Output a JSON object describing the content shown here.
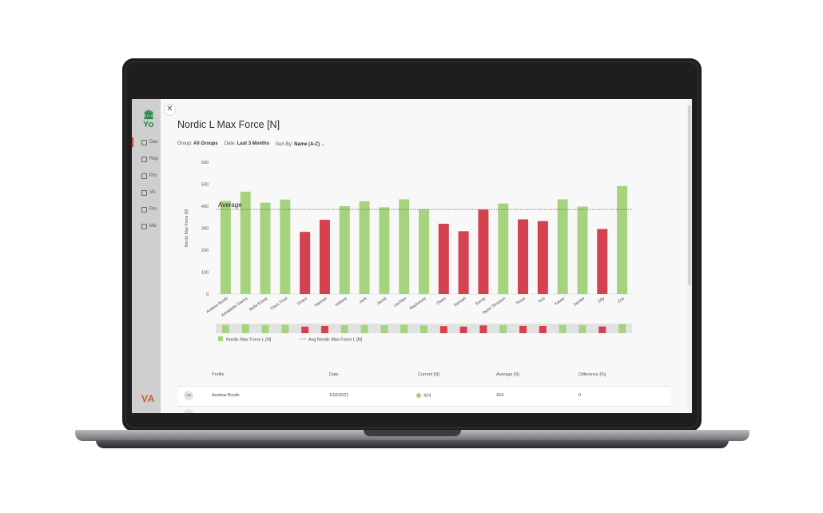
{
  "colors": {
    "good": "#a6d47e",
    "bad": "#d4414f",
    "avg_line": "#555555",
    "accent": "#d2542b"
  },
  "sidebar": {
    "logo": "Yo",
    "brand": "VA",
    "items": [
      {
        "label": "Das",
        "icon": "home-icon"
      },
      {
        "label": "Rep",
        "icon": "reports-icon"
      },
      {
        "label": "Pro",
        "icon": "programs-icon"
      },
      {
        "label": "VA",
        "icon": "vald-icon"
      },
      {
        "label": "Pro",
        "icon": "profiles-icon"
      },
      {
        "label": "Ma",
        "icon": "manage-icon"
      }
    ]
  },
  "modal": {
    "close_icon": "close-icon",
    "title": "Nordic L Max Force [N]",
    "filters": {
      "group_label": "Group:",
      "group_value": "All Groups",
      "date_label": "Date:",
      "date_value": "Last 3 Months",
      "sort_label": "Sort By:",
      "sort_value": "Name (A-Z)"
    }
  },
  "chart_data": {
    "type": "bar",
    "ylabel": "Nordic Max Force [N]",
    "ylim": [
      0,
      600
    ],
    "yticks": [
      0,
      100,
      200,
      300,
      400,
      500,
      600
    ],
    "average": 385,
    "average_label": "Average",
    "categories": [
      "Andrew Booth",
      "Annabelle Davies",
      "Bella Essey",
      "Clara Trust",
      "Grace",
      "Hannah",
      "Indiana",
      "Jack",
      "Jacob",
      "Lachlan",
      "Mackenzie",
      "Owen",
      "Samuel",
      "Sonny",
      "Taylor Simpson",
      "Tessa",
      "Tom",
      "Xavier",
      "Zander",
      "Zilly",
      "Zoe"
    ],
    "values": [
      424,
      466,
      416,
      430,
      283,
      338,
      400,
      422,
      395,
      431,
      386,
      320,
      286,
      384,
      412,
      340,
      332,
      431,
      398,
      296,
      492
    ],
    "legend": [
      {
        "label": "Nordic Max Force L [N]",
        "kind": "bar"
      },
      {
        "label": "Avg Nordic Max Force L [N]",
        "kind": "line"
      }
    ]
  },
  "table": {
    "headers": [
      "Profile",
      "Date",
      "Current [N]",
      "Average [N]",
      "Difference [%]"
    ],
    "rows": [
      {
        "initials": "AB",
        "name": "Andrew Booth",
        "date": "1/02/2021",
        "current": "424",
        "average": "424",
        "difference": "0"
      }
    ]
  }
}
